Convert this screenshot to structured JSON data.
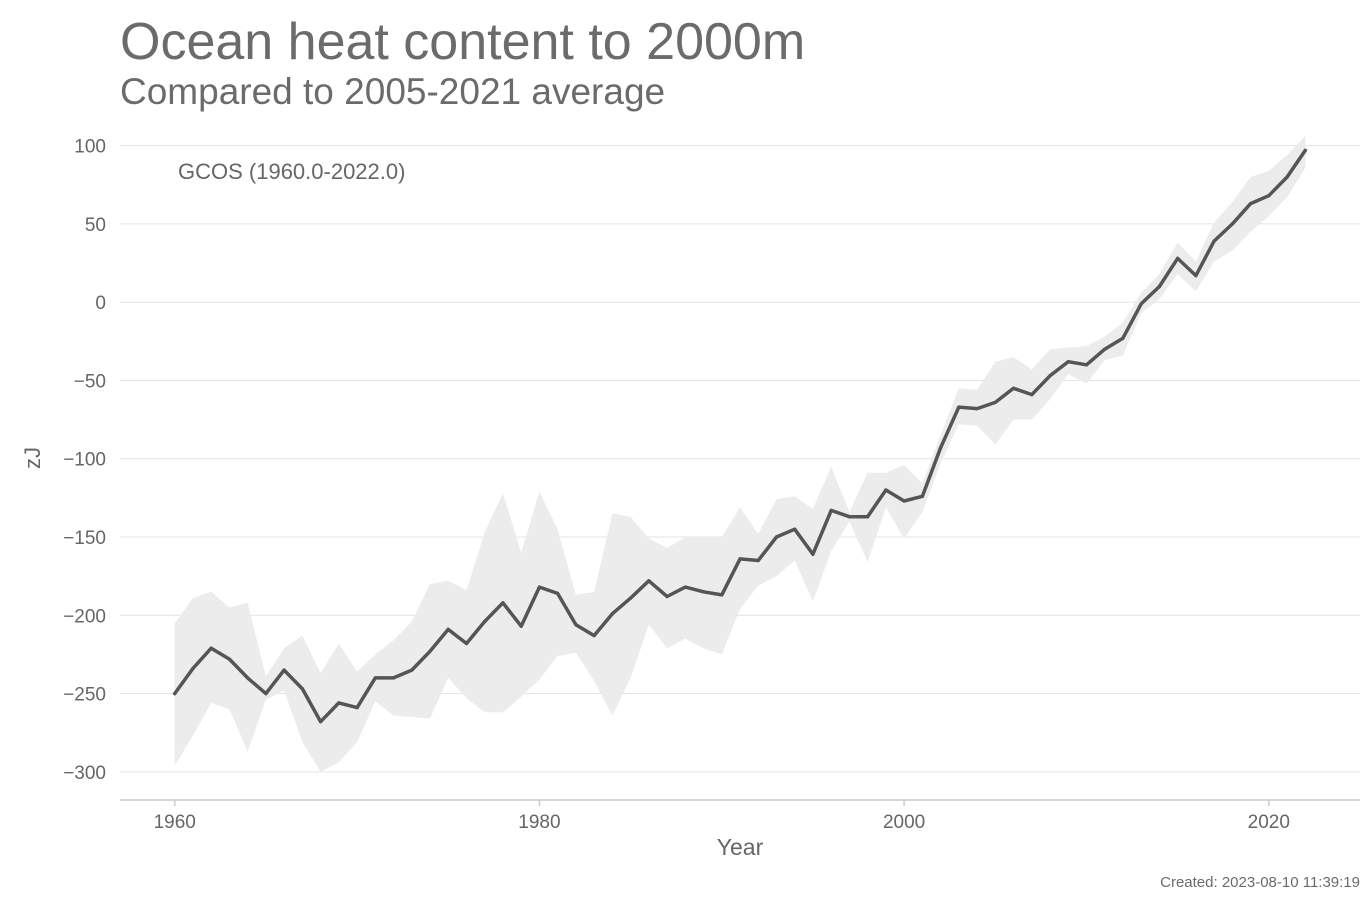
{
  "header": {
    "title": "Ocean heat content to 2000m",
    "subtitle": "Compared to 2005-2021 average"
  },
  "footer": {
    "created": "Created: 2023-08-10 11:39:19"
  },
  "colors": {
    "line": "#555555",
    "band": "#ececec",
    "grid": "#e4e4e4",
    "axis": "#cccccc",
    "text": "#666666"
  },
  "chart_data": {
    "type": "line",
    "title": "Ocean heat content to 2000m",
    "subtitle": "Compared to 2005-2021 average",
    "xlabel": "Year",
    "ylabel": "zJ",
    "xlim": [
      1957,
      2025
    ],
    "ylim": [
      -318,
      110
    ],
    "x_ticks": [
      1960,
      1980,
      2000,
      2020
    ],
    "x_tick_labels": [
      "1960",
      "1980",
      "2000",
      "2020"
    ],
    "y_ticks": [
      100,
      50,
      0,
      -50,
      -100,
      -150,
      -200,
      -250,
      -300
    ],
    "y_tick_labels": [
      "100",
      "50",
      "0",
      "−50",
      "−100",
      "−150",
      "−200",
      "−250",
      "−300"
    ],
    "grid": "horizontal",
    "annotation": "GCOS (1960.0-2022.0)",
    "x": [
      1960,
      1961,
      1962,
      1963,
      1964,
      1965,
      1966,
      1967,
      1968,
      1969,
      1970,
      1971,
      1972,
      1973,
      1974,
      1975,
      1976,
      1977,
      1978,
      1979,
      1980,
      1981,
      1982,
      1983,
      1984,
      1985,
      1986,
      1987,
      1988,
      1989,
      1990,
      1991,
      1992,
      1993,
      1994,
      1995,
      1996,
      1997,
      1998,
      1999,
      2000,
      2001,
      2002,
      2003,
      2004,
      2005,
      2006,
      2007,
      2008,
      2009,
      2010,
      2011,
      2012,
      2013,
      2014,
      2015,
      2016,
      2017,
      2018,
      2019,
      2020,
      2021,
      2022
    ],
    "series": [
      {
        "name": "GCOS",
        "values": [
          -250,
          -234,
          -221,
          -228,
          -240,
          -250,
          -235,
          -247,
          -268,
          -256,
          -259,
          -240,
          -240,
          -235,
          -223,
          -209,
          -218,
          -204,
          -192,
          -207,
          -182,
          -186,
          -206,
          -213,
          -199,
          -189,
          -178,
          -188,
          -182,
          -185,
          -187,
          -164,
          -165,
          -150,
          -145,
          -161,
          -133,
          -137,
          -137,
          -120,
          -127,
          -124,
          -93,
          -67,
          -68,
          -64,
          -55,
          -59,
          -47,
          -38,
          -40,
          -30,
          -23,
          -1,
          10,
          28,
          17,
          39,
          50,
          63,
          68,
          80,
          97
        ],
        "lower": [
          -296,
          -277,
          -256,
          -260,
          -287,
          -254,
          -248,
          -281,
          -300,
          -294,
          -281,
          -255,
          -264,
          -265,
          -266,
          -240,
          -253,
          -262,
          -262,
          -252,
          -241,
          -226,
          -224,
          -242,
          -264,
          -240,
          -206,
          -221,
          -215,
          -221,
          -225,
          -196,
          -181,
          -175,
          -165,
          -191,
          -159,
          -140,
          -166,
          -131,
          -151,
          -134,
          -103,
          -78,
          -79,
          -91,
          -75,
          -75,
          -62,
          -46,
          -52,
          -37,
          -34,
          -7,
          2,
          18,
          7,
          26,
          33,
          45,
          55,
          67,
          86
        ],
        "upper": [
          -205,
          -189,
          -185,
          -195,
          -192,
          -239,
          -221,
          -213,
          -237,
          -218,
          -236,
          -225,
          -216,
          -204,
          -180,
          -178,
          -184,
          -147,
          -122,
          -160,
          -121,
          -145,
          -187,
          -185,
          -135,
          -137,
          -151,
          -157,
          -150,
          -150,
          -150,
          -131,
          -148,
          -126,
          -124,
          -132,
          -105,
          -134,
          -109,
          -109,
          -104,
          -116,
          -85,
          -55,
          -56,
          -38,
          -35,
          -43,
          -30,
          -29,
          -28,
          -22,
          -13,
          6,
          18,
          38,
          26,
          51,
          64,
          80,
          84,
          94,
          106
        ]
      }
    ]
  }
}
